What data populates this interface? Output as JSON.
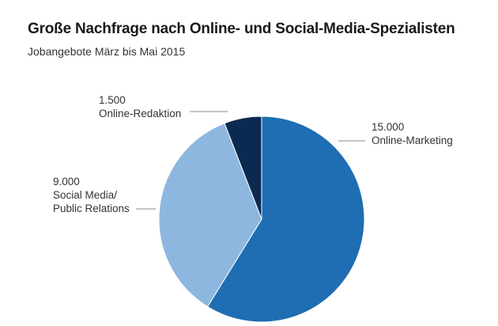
{
  "chart_data": {
    "type": "pie",
    "title": "Große Nachfrage nach Online- und Social-Media-Spezialisten",
    "subtitle": "Jobangebote März bis Mai 2015",
    "slices": [
      {
        "category": "Online-Marketing",
        "value": 15000,
        "value_label": "15.000",
        "color": "#1f6db2"
      },
      {
        "category": "Social Media/\nPublic Relations",
        "value": 9000,
        "value_label": "9.000",
        "color": "#8db7de"
      },
      {
        "category": "Online-Redaktion",
        "value": 1500,
        "value_label": "1.500",
        "color": "#0b2a52"
      }
    ],
    "start": "12 o'clock",
    "direction": "clockwise",
    "legend": "none",
    "grid": false
  }
}
